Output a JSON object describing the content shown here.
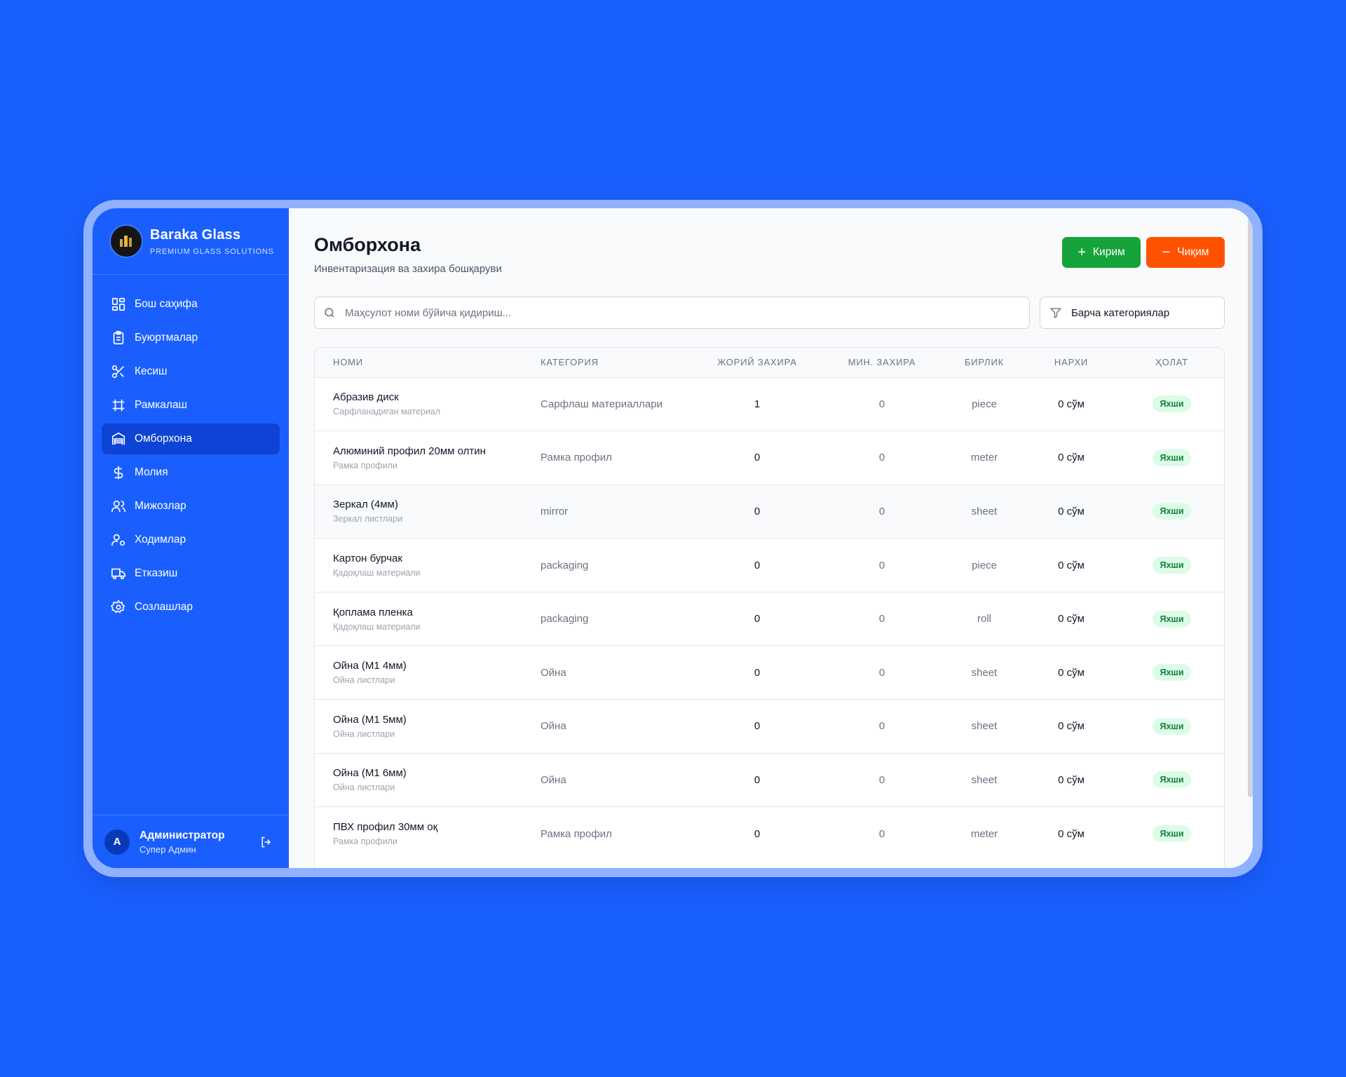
{
  "brand": {
    "title": "Baraka Glass",
    "subtitle": "PREMIUM GLASS SOLUTIONS"
  },
  "nav": [
    {
      "label": "Бош саҳифа",
      "icon": "dashboard-icon"
    },
    {
      "label": "Буюртмалар",
      "icon": "clipboard-icon"
    },
    {
      "label": "Кесиш",
      "icon": "scissors-icon"
    },
    {
      "label": "Рамкалаш",
      "icon": "frame-icon"
    },
    {
      "label": "Омборхона",
      "icon": "warehouse-icon",
      "active": true
    },
    {
      "label": "Молия",
      "icon": "dollar-icon"
    },
    {
      "label": "Мижозлар",
      "icon": "users-icon"
    },
    {
      "label": "Ходимлар",
      "icon": "user-cog-icon"
    },
    {
      "label": "Етказиш",
      "icon": "truck-icon"
    },
    {
      "label": "Созлашлар",
      "icon": "gear-icon"
    }
  ],
  "user": {
    "initial": "A",
    "name": "Администратор",
    "role": "Супер Админ"
  },
  "page": {
    "title": "Омборхона",
    "subtitle": "Инвентаризация ва захира бошқаруви"
  },
  "actions": {
    "in_label": "Кирим",
    "out_label": "Чиқим"
  },
  "search": {
    "placeholder": "Маҳсулот номи бўйича қидириш...",
    "value": ""
  },
  "category_filter": {
    "selected": "Барча категориялар"
  },
  "table": {
    "headers": [
      "НОМИ",
      "КАТЕГОРИЯ",
      "ЖОРИЙ ЗАХИРА",
      "МИН. ЗАХИРА",
      "БИРЛИК",
      "НАРХИ",
      "ҲОЛАТ"
    ],
    "rows": [
      {
        "name": "Абразив диск",
        "sub": "Сарфланадиган материал",
        "category": "Сарфлаш материаллари",
        "current": "1",
        "min": "0",
        "unit": "piece",
        "price": "0 сўм",
        "status": "Яхши"
      },
      {
        "name": "Алюминий профил 20мм олтин",
        "sub": "Рамка профили",
        "category": "Рамка профил",
        "current": "0",
        "min": "0",
        "unit": "meter",
        "price": "0 сўм",
        "status": "Яхши"
      },
      {
        "name": "Зеркал (4мм)",
        "sub": "Зеркал листлари",
        "category": "mirror",
        "current": "0",
        "min": "0",
        "unit": "sheet",
        "price": "0 сўм",
        "status": "Яхши"
      },
      {
        "name": "Картон бурчак",
        "sub": "Қадоқлаш материали",
        "category": "packaging",
        "current": "0",
        "min": "0",
        "unit": "piece",
        "price": "0 сўм",
        "status": "Яхши"
      },
      {
        "name": "Қоплама пленка",
        "sub": "Қадоқлаш материали",
        "category": "packaging",
        "current": "0",
        "min": "0",
        "unit": "roll",
        "price": "0 сўм",
        "status": "Яхши"
      },
      {
        "name": "Ойна (M1 4мм)",
        "sub": "Ойна листлари",
        "category": "Ойна",
        "current": "0",
        "min": "0",
        "unit": "sheet",
        "price": "0 сўм",
        "status": "Яхши"
      },
      {
        "name": "Ойна (M1 5мм)",
        "sub": "Ойна листлари",
        "category": "Ойна",
        "current": "0",
        "min": "0",
        "unit": "sheet",
        "price": "0 сўм",
        "status": "Яхши"
      },
      {
        "name": "Ойна (M1 6мм)",
        "sub": "Ойна листлари",
        "category": "Ойна",
        "current": "0",
        "min": "0",
        "unit": "sheet",
        "price": "0 сўм",
        "status": "Яхши"
      },
      {
        "name": "ПВХ профил 30мм оқ",
        "sub": "Рамка профили",
        "category": "Рамка профил",
        "current": "0",
        "min": "0",
        "unit": "meter",
        "price": "0 сўм",
        "status": "Яхши"
      }
    ]
  },
  "colors": {
    "sidebar": "#1a5ffe",
    "active_nav": "#0d44d6",
    "in_button": "#16a33b",
    "out_button": "#ff5200",
    "badge_bg": "#dcfce7",
    "badge_text": "#15803d"
  }
}
